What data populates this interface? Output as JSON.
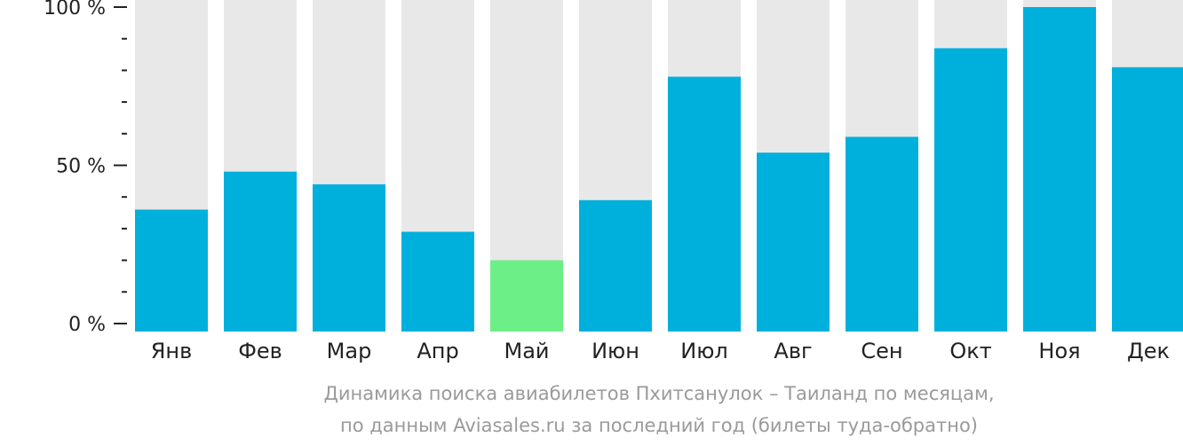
{
  "chart_data": {
    "type": "bar",
    "categories": [
      "Янв",
      "Фев",
      "Мар",
      "Апр",
      "Май",
      "Июн",
      "Июл",
      "Авг",
      "Сен",
      "Окт",
      "Ноя",
      "Дек"
    ],
    "values": [
      36,
      48,
      44,
      29,
      20,
      39,
      78,
      54,
      59,
      87,
      100,
      81
    ],
    "ylim": [
      0,
      100
    ],
    "yticks": [
      {
        "value": 0,
        "label": "0 %"
      },
      {
        "value": 50,
        "label": "50 %"
      },
      {
        "value": 100,
        "label": "100 %"
      }
    ],
    "minor_tick_step": 10,
    "highlight_category": "Май",
    "colors": {
      "bar": "#00b0dc",
      "highlight": "#6def87",
      "background_bar": "#e8e8e8",
      "axis": "#222222",
      "caption": "#9a9a9a"
    }
  },
  "caption": {
    "line1": "Динамика поиска авиабилетов Пхитсанулок – Таиланд по месяцам,",
    "line2": "по данным Aviasales.ru за последний год (билеты туда-обратно)"
  }
}
